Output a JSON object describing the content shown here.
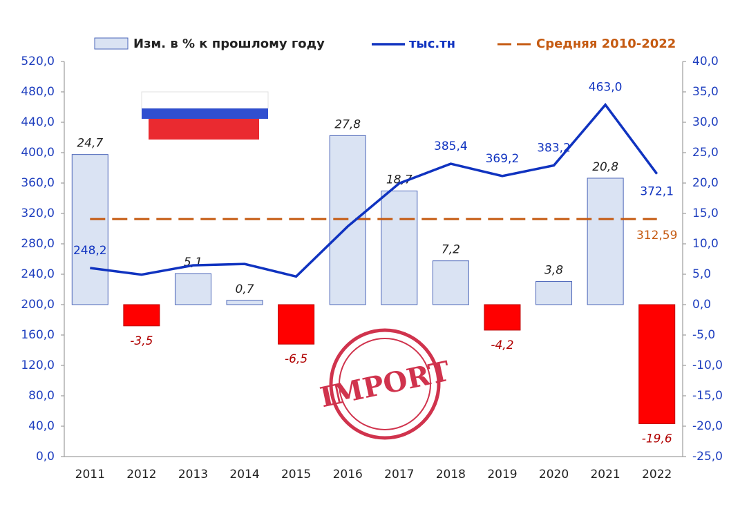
{
  "chart_data": {
    "type": "bar-line",
    "categories": [
      "2011",
      "2012",
      "2013",
      "2014",
      "2015",
      "2016",
      "2017",
      "2018",
      "2019",
      "2020",
      "2021",
      "2022"
    ],
    "series": [
      {
        "name": "Изм. в % к прошлому году",
        "type": "bar",
        "axis": "y2",
        "color": "#dae3f3",
        "negative_color": "#ff0000",
        "values": [
          24.7,
          -3.5,
          5.1,
          0.7,
          -6.5,
          27.8,
          18.7,
          7.2,
          -4.2,
          3.8,
          20.8,
          -19.6
        ],
        "value_labels": [
          "24,7",
          "-3,5",
          "5,1",
          "0,7",
          "-6,5",
          "27,8",
          "18,7",
          "7,2",
          "-4,2",
          "3,8",
          "20,8",
          "-19,6"
        ]
      },
      {
        "name": "тыс.тн",
        "type": "line",
        "axis": "y",
        "color": "#1033c0",
        "values": [
          248.2,
          239.5,
          251.7,
          253.5,
          237.0,
          302.9,
          359.6,
          385.4,
          369.2,
          383.2,
          463.0,
          372.1
        ],
        "value_labels": [
          "248,2",
          null,
          null,
          null,
          null,
          null,
          null,
          "385,4",
          "369,2",
          "383,2",
          "463,0",
          "372,1"
        ]
      }
    ],
    "average": {
      "name": "Средняя 2010-2022",
      "value": 312.59,
      "value_label": "312,59",
      "color": "#c55a11"
    },
    "ylim": [
      0,
      520
    ],
    "yticks": [
      {
        "value": 0,
        "label": "0,0"
      },
      {
        "value": 40,
        "label": "40,0"
      },
      {
        "value": 80,
        "label": "80,0"
      },
      {
        "value": 120,
        "label": "120,0"
      },
      {
        "value": 160,
        "label": "160,0"
      },
      {
        "value": 200,
        "label": "200,0"
      },
      {
        "value": 240,
        "label": "240,0"
      },
      {
        "value": 280,
        "label": "280,0"
      },
      {
        "value": 320,
        "label": "320,0"
      },
      {
        "value": 360,
        "label": "360,0"
      },
      {
        "value": 400,
        "label": "400,0"
      },
      {
        "value": 440,
        "label": "440,0"
      },
      {
        "value": 480,
        "label": "480,0"
      },
      {
        "value": 520,
        "label": "520,0"
      }
    ],
    "y2lim": [
      -25,
      40
    ],
    "y2ticks": [
      {
        "value": -25,
        "label": "-25,0"
      },
      {
        "value": -20,
        "label": "-20,0"
      },
      {
        "value": -15,
        "label": "-15,0"
      },
      {
        "value": -10,
        "label": "-10,0"
      },
      {
        "value": -5,
        "label": "-5,0"
      },
      {
        "value": 0,
        "label": "0,0"
      },
      {
        "value": 5,
        "label": "5,0"
      },
      {
        "value": 10,
        "label": "10,0"
      },
      {
        "value": 15,
        "label": "15,0"
      },
      {
        "value": 20,
        "label": "20,0"
      },
      {
        "value": 25,
        "label": "25,0"
      },
      {
        "value": 30,
        "label": "30,0"
      },
      {
        "value": 35,
        "label": "35,0"
      },
      {
        "value": 40,
        "label": "40,0"
      }
    ],
    "stamp": "IMPORT"
  }
}
